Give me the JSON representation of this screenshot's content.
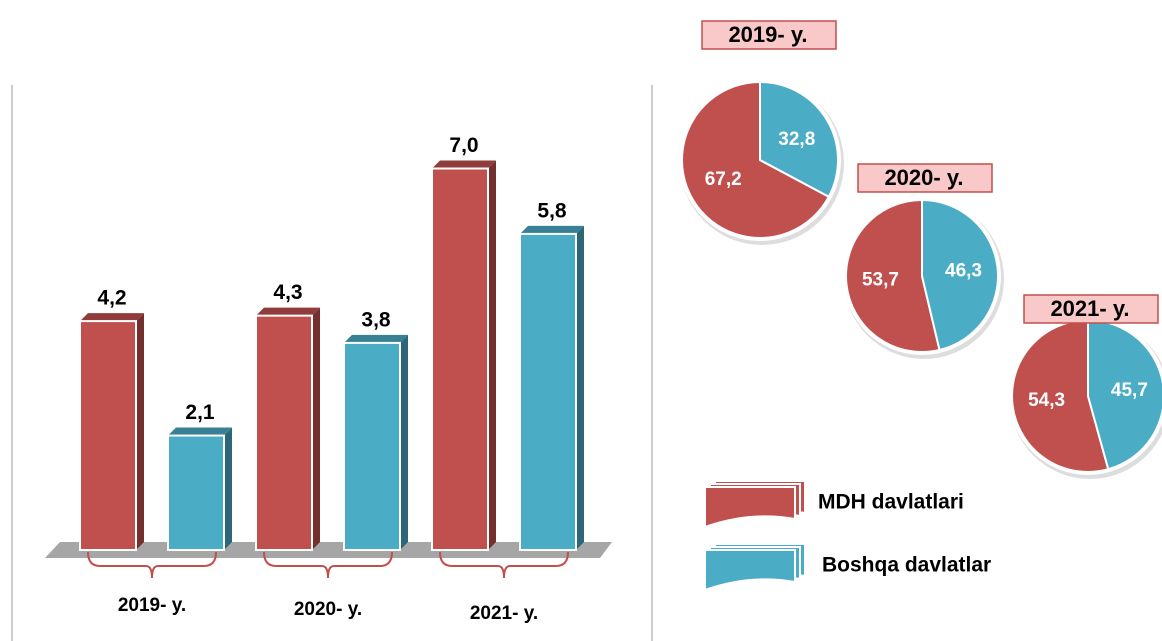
{
  "chart_data": [
    {
      "type": "bar",
      "categories": [
        "2019- y.",
        "2020- y.",
        "2021- y."
      ],
      "series": [
        {
          "name": "MDH davlatlari",
          "color": "#c0504d",
          "values": [
            4.2,
            4.3,
            7.0
          ],
          "value_labels": [
            "4,2",
            "4,3",
            "7,0"
          ]
        },
        {
          "name": "Boshqa davlatlar",
          "color": "#4bacc6",
          "values": [
            2.1,
            3.8,
            5.8
          ],
          "value_labels": [
            "2,1",
            "3,8",
            "5,8"
          ]
        }
      ]
    },
    {
      "type": "pie",
      "title": "2019- y.",
      "values": [
        67.2,
        32.8
      ],
      "value_labels": [
        "67,2",
        "32,8"
      ],
      "colors": [
        "#c0504d",
        "#4bacc6"
      ]
    },
    {
      "type": "pie",
      "title": "2020- y.",
      "values": [
        53.7,
        46.3
      ],
      "value_labels": [
        "53,7",
        "46,3"
      ],
      "colors": [
        "#c0504d",
        "#4bacc6"
      ]
    },
    {
      "type": "pie",
      "title": "2021- y.",
      "values": [
        54.3,
        45.7
      ],
      "value_labels": [
        "54,3",
        "45,7"
      ],
      "colors": [
        "#c0504d",
        "#4bacc6"
      ]
    }
  ]
}
